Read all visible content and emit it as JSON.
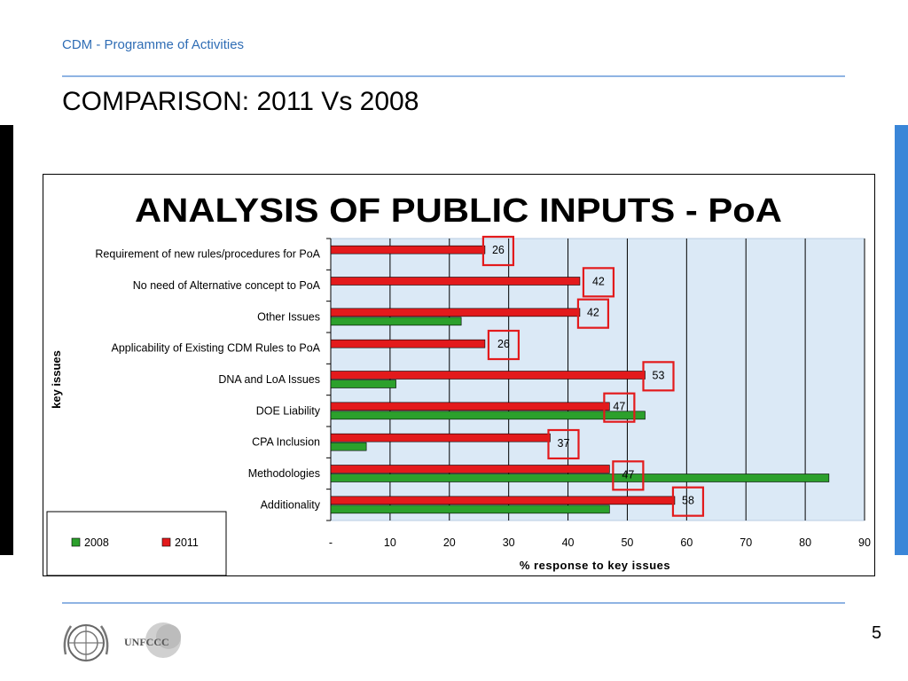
{
  "header": {
    "subtitle": "CDM - Programme of Activities",
    "title": "COMPARISON: 2011 Vs 2008"
  },
  "footer": {
    "page_number": "5",
    "logos": [
      "un-emblem",
      "UNFCCC"
    ]
  },
  "colors": {
    "series_2008": "#2ca02c",
    "series_2011": "#e31a1c",
    "plot_background": "#dbe9f6",
    "highlight_box": "#e31a1c",
    "accent_blue": "#2f6db5"
  },
  "chart_data": {
    "type": "bar",
    "orientation": "horizontal",
    "title": "ANALYSIS OF PUBLIC INPUTS - PoA",
    "xlabel": "% response to key issues",
    "ylabel": "key issues",
    "xlim": [
      0,
      90
    ],
    "x_ticks": [
      "-",
      "10",
      "20",
      "30",
      "40",
      "50",
      "60",
      "70",
      "80",
      "90"
    ],
    "grid": "vertical",
    "legend_position": "bottom-left",
    "categories": [
      "Requirement of new  rules/procedures for PoA",
      "No need of Alternative concept to PoA",
      "Other Issues",
      "Applicability of Existing CDM Rules to PoA",
      "DNA and LoA Issues",
      "DOE Liability",
      "CPA Inclusion",
      "Methodologies",
      "Additionality"
    ],
    "series": [
      {
        "name": "2011",
        "values": [
          26,
          42,
          42,
          26,
          53,
          47,
          37,
          47,
          58
        ]
      },
      {
        "name": "2008",
        "values": [
          0,
          0,
          22,
          0,
          11,
          53,
          6,
          84,
          47
        ]
      }
    ],
    "data_labels_2011": [
      "26",
      "42",
      "42",
      "26",
      "53",
      "47",
      "37",
      "47",
      "58"
    ],
    "legend": [
      "2008",
      "2011"
    ]
  }
}
